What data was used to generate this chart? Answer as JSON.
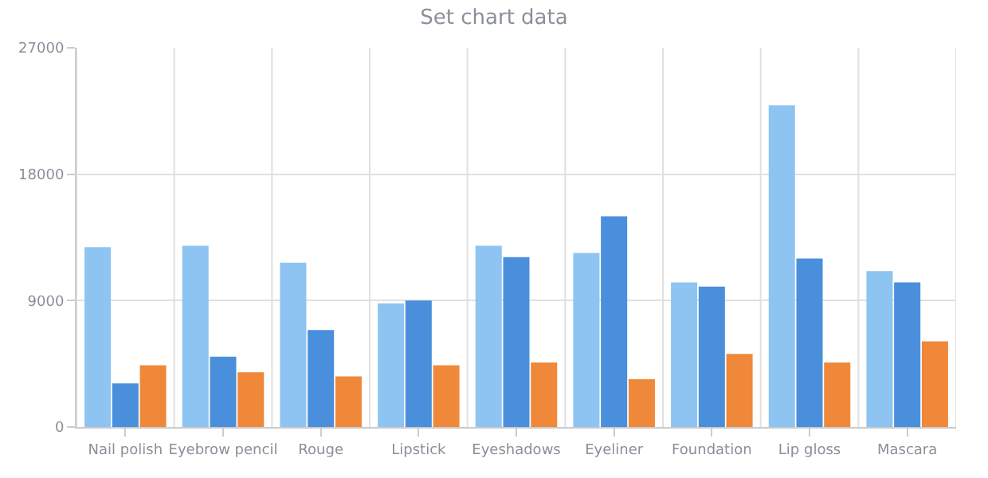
{
  "chart_data": {
    "type": "bar",
    "title": "Set chart data",
    "categories": [
      "Nail polish",
      "Eyebrow pencil",
      "Rouge",
      "Lipstick",
      "Eyeshadows",
      "Eyeliner",
      "Foundation",
      "Lip gloss",
      "Mascara"
    ],
    "series": [
      {
        "color": "#8ec4f2",
        "values": [
          12800,
          12900,
          11700,
          8800,
          12900,
          12400,
          10300,
          22900,
          11100
        ]
      },
      {
        "color": "#4a8fdb",
        "values": [
          3100,
          5000,
          6900,
          9000,
          12100,
          15000,
          10000,
          12000,
          10300
        ]
      },
      {
        "color": "#f0883a",
        "values": [
          4400,
          3900,
          3600,
          4400,
          4600,
          3400,
          5200,
          4600,
          6100
        ]
      }
    ],
    "ylim": [
      0,
      27000
    ],
    "yticks": [
      0,
      9000,
      18000,
      27000
    ],
    "grid": true
  }
}
